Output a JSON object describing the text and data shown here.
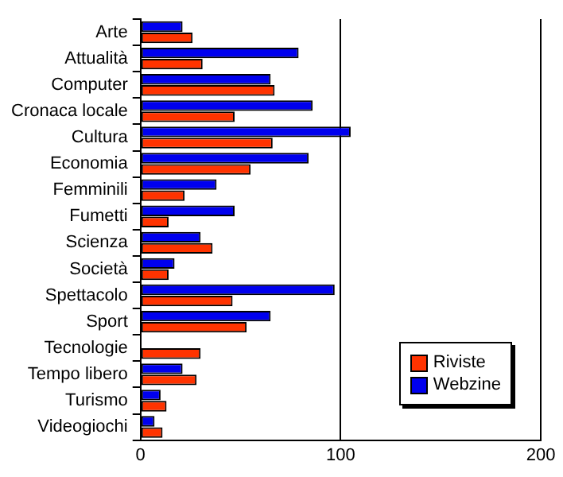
{
  "chart_data": {
    "type": "bar",
    "orientation": "horizontal",
    "categories": [
      "Arte",
      "Attualità",
      "Computer",
      "Cronaca locale",
      "Cultura",
      "Economia",
      "Femminili",
      "Fumetti",
      "Scienza",
      "Società",
      "Spettacolo",
      "Sport",
      "Tecnologie",
      "Tempo libero",
      "Turismo",
      "Videogiochi"
    ],
    "series": [
      {
        "name": "Webzine",
        "color": "#0000ee",
        "values": [
          21,
          79,
          65,
          86,
          105,
          84,
          38,
          47,
          30,
          17,
          97,
          65,
          null,
          21,
          10,
          7
        ]
      },
      {
        "name": "Riviste",
        "color": "#ff3300",
        "values": [
          26,
          31,
          67,
          47,
          66,
          55,
          22,
          14,
          36,
          14,
          46,
          53,
          30,
          28,
          13,
          11
        ]
      }
    ],
    "xlim": [
      0,
      200
    ],
    "xticks": [
      0,
      100,
      200
    ],
    "grid": "x",
    "legend": "bottom right"
  }
}
